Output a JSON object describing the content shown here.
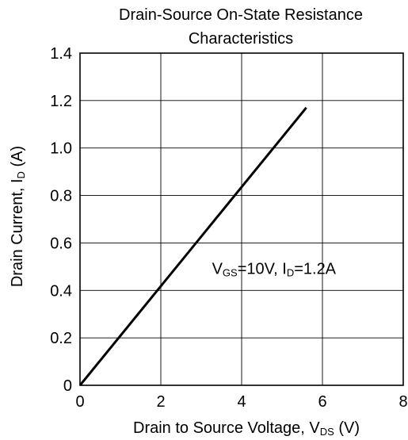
{
  "chart_data": {
    "type": "line",
    "title_line1": "Drain-Source On-State Resistance",
    "title_line2": "Characteristics",
    "xlabel": {
      "main": "Drain to Source Voltage, V",
      "sub": "DS",
      "suffix": " (V)"
    },
    "ylabel": {
      "main": "Drain Current, I",
      "sub": "D",
      "suffix": " (A)"
    },
    "xlim": [
      0,
      8
    ],
    "ylim": [
      0,
      1.4
    ],
    "x_ticks": [
      0,
      2,
      4,
      6,
      8
    ],
    "x_tick_labels": [
      "0",
      "2",
      "4",
      "6",
      "8"
    ],
    "y_ticks": [
      0,
      0.2,
      0.4,
      0.6,
      0.8,
      1.0,
      1.2,
      1.4
    ],
    "y_tick_labels": [
      "0",
      "0.2",
      "0.4",
      "0.6",
      "0.8",
      "1.0",
      "1.2",
      "1.4"
    ],
    "grid": true,
    "series": [
      {
        "x": [
          0,
          5.6
        ],
        "y": [
          0,
          1.17
        ],
        "color": "#000000"
      }
    ],
    "annotation": {
      "parts": [
        {
          "text": "V",
          "sub": false
        },
        {
          "text": "GS",
          "sub": true
        },
        {
          "text": "=10V, I",
          "sub": false
        },
        {
          "text": "D",
          "sub": true
        },
        {
          "text": "=1.2A",
          "sub": false
        }
      ],
      "x": 4.8,
      "y": 0.47
    }
  }
}
